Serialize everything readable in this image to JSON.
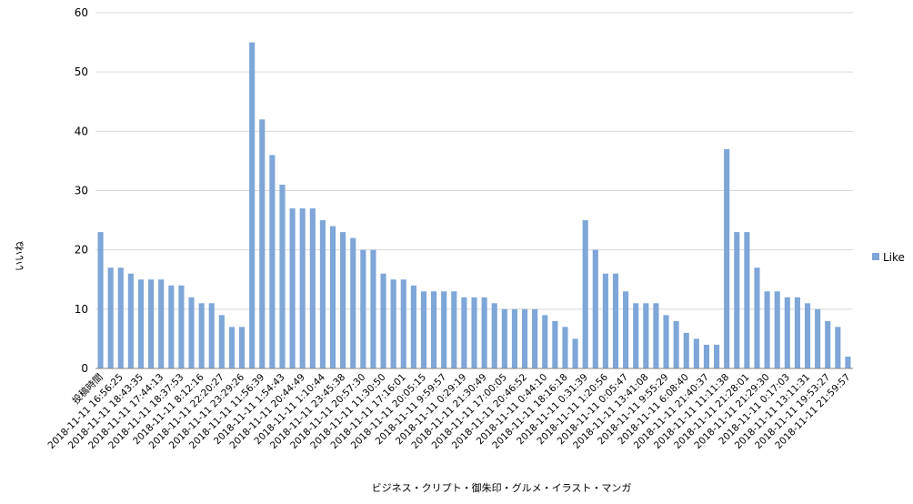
{
  "chart_data": {
    "type": "bar",
    "title": "",
    "xlabel": "ビジネス・クリプト・御朱印・グルメ・イラスト・マンガ",
    "ylabel": "いいね",
    "ylim": [
      0,
      60
    ],
    "yticks": [
      0,
      10,
      20,
      30,
      40,
      50,
      60
    ],
    "grid": true,
    "legend_position": "right",
    "bar_color": "#7ea6d8",
    "categories": [
      "投稿時間",
      "",
      "2018-11-11 16:56:25",
      "",
      "2018-11-11 18:43:35",
      "",
      "2018-11-11 17:44:13",
      "",
      "2018-11-11 18:37:53",
      "",
      "2018-11-11 8:12:16",
      "",
      "2018-11-11 22:20:27",
      "",
      "2018-11-11 23:29:26",
      "",
      "2018-11-11 11:56:39",
      "",
      "2018-11-11 1:54:43",
      "",
      "2018-11-11 20:44:49",
      "",
      "2018-11-11 1:10:44",
      "",
      "2018-11-11 23:45:38",
      "",
      "2018-11-11 20:57:30",
      "",
      "2018-11-11 11:30:50",
      "",
      "2018-11-11 17:16:01",
      "",
      "2018-11-11 20:05:15",
      "",
      "2018-11-11 9:59:57",
      "",
      "2018-11-11 0:29:19",
      "",
      "2018-11-11 21:30:49",
      "",
      "2018-11-11 17:00:05",
      "",
      "2018-11-11 20:46:52",
      "",
      "2018-11-11 0:44:10",
      "",
      "2018-11-11 18:16:18",
      "",
      "2018-11-11 0:31:39",
      "",
      "2018-11-11 1:20:56",
      "",
      "2018-11-11 0:05:47",
      "",
      "2018-11-11 13:41:08",
      "",
      "2018-11-11 9:55:29",
      "",
      "2018-11-11 6:08:40",
      "",
      "2018-11-11 21:40:37",
      "",
      "2018-11-11 11:11:38",
      "",
      "2018-11-11 21:28:01",
      "",
      "2018-11-11 21:29:30",
      "",
      "2018-11-11 0:17:03",
      "",
      "2018-11-11 13:11:31",
      "",
      "2018-11-11 19:53:27",
      "",
      "2018-11-11 21:59:57"
    ],
    "series": [
      {
        "name": "Like",
        "values": [
          23,
          17,
          17,
          16,
          15,
          15,
          15,
          14,
          14,
          12,
          11,
          11,
          9,
          7,
          7,
          55,
          42,
          36,
          31,
          27,
          27,
          27,
          25,
          24,
          23,
          22,
          20,
          20,
          16,
          15,
          15,
          14,
          13,
          13,
          13,
          13,
          12,
          12,
          12,
          11,
          10,
          10,
          10,
          10,
          9,
          8,
          7,
          5,
          25,
          20,
          16,
          16,
          13,
          11,
          11,
          11,
          9,
          8,
          6,
          5,
          4,
          4,
          37,
          23,
          23,
          17,
          13,
          13,
          12,
          12,
          11,
          10,
          8,
          7,
          2
        ]
      }
    ]
  }
}
